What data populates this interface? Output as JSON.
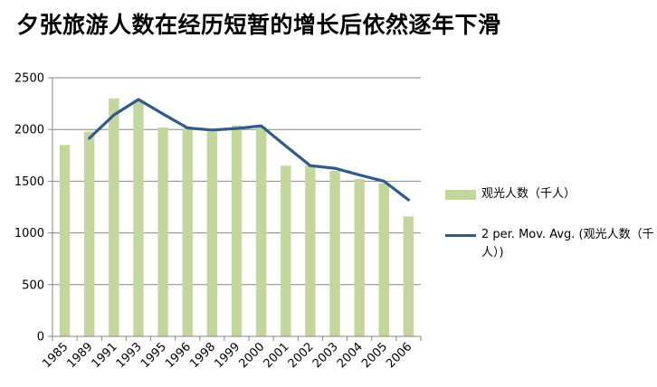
{
  "chart_data": {
    "type": "bar",
    "title": "夕张旅游人数在经历短暂的增长后依然逐年下滑",
    "categories": [
      "1985",
      "1989",
      "1991",
      "1993",
      "1995",
      "1996",
      "1998",
      "1999",
      "2000",
      "2001",
      "2002",
      "2003",
      "2004",
      "2005",
      "2006"
    ],
    "series": [
      {
        "name": "观光人数（千人）",
        "type": "bar",
        "color": "#c3d69b",
        "values": [
          1850,
          1980,
          2300,
          2280,
          2020,
          2010,
          1980,
          2040,
          2030,
          1650,
          1650,
          1600,
          1520,
          1480,
          1160
        ]
      },
      {
        "name": "2 per. Mov. Avg. (观光人数（千人）)",
        "type": "line",
        "color": "#2f5a8c",
        "values": [
          null,
          1915,
          2140,
          2290,
          2150,
          2015,
          1995,
          2010,
          2035,
          1840,
          1650,
          1625,
          1560,
          1500,
          1320
        ]
      }
    ],
    "ylim": [
      0,
      2500
    ],
    "yticks": [
      0,
      500,
      1000,
      1500,
      2000,
      2500
    ],
    "grid": true,
    "legend": "right"
  }
}
